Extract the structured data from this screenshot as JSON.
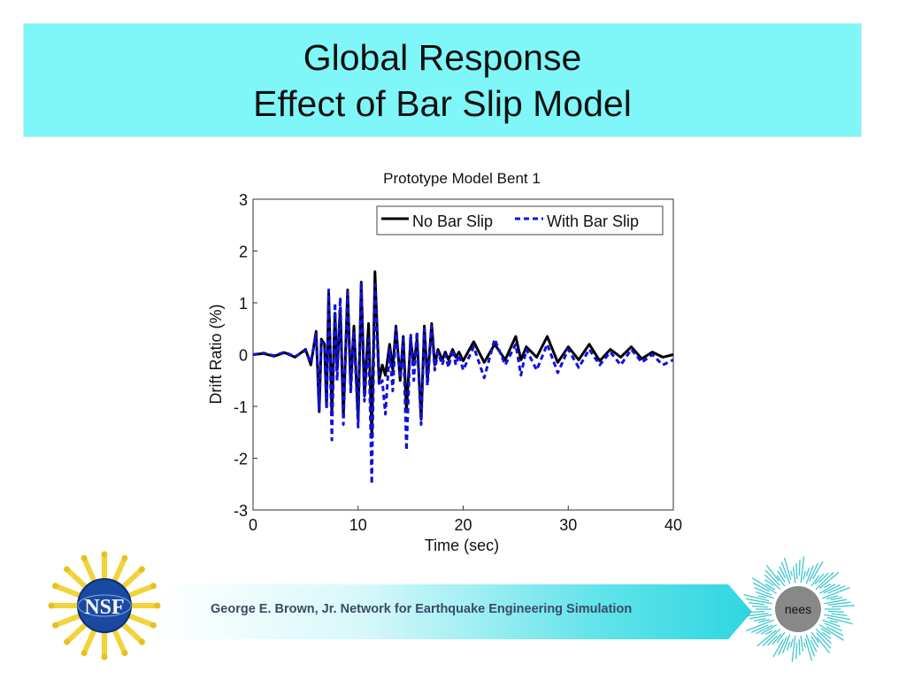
{
  "slide": {
    "title_line1": "Global Response",
    "title_line2": "Effect of Bar Slip Model"
  },
  "footer": {
    "text": "George E. Brown, Jr. Network for Earthquake Engineering Simulation",
    "nsf_logo_text": "NSF",
    "nees_logo_text": "nees"
  },
  "colors": {
    "title_bg": "#7ff7f9",
    "series_no_slip": "#000000",
    "series_with_slip": "#1010e0"
  },
  "chart_data": {
    "type": "line",
    "title": "Prototype Model Bent 1",
    "xlabel": "Time (sec)",
    "ylabel": "Drift Ratio (%)",
    "xlim": [
      0,
      40
    ],
    "ylim": [
      -3,
      3
    ],
    "xticks": [
      0,
      10,
      20,
      30,
      40
    ],
    "yticks": [
      -3,
      -2,
      -1,
      0,
      1,
      2,
      3
    ],
    "legend_position": "top-right",
    "series": [
      {
        "name": "No Bar Slip",
        "style": "solid",
        "x": [
          0,
          1,
          2,
          3,
          4,
          5,
          5.5,
          6,
          6.3,
          6.5,
          6.8,
          7,
          7.2,
          7.5,
          7.8,
          8,
          8.3,
          8.6,
          9,
          9.3,
          9.6,
          10,
          10.3,
          10.6,
          11,
          11.3,
          11.6,
          12,
          12.3,
          12.6,
          13,
          13.3,
          13.6,
          14,
          14.3,
          14.6,
          15,
          15.3,
          15.6,
          16,
          16.3,
          16.6,
          17,
          17.3,
          17.6,
          18,
          18.3,
          18.6,
          19,
          19.3,
          19.6,
          20,
          21,
          22,
          23,
          24,
          25,
          25.5,
          26,
          27,
          28,
          29,
          30,
          31,
          32,
          33,
          34,
          35,
          36,
          37,
          38,
          39,
          40
        ],
        "y": [
          0,
          0.02,
          -0.03,
          0.04,
          -0.05,
          0.1,
          -0.2,
          0.45,
          -1.1,
          0.3,
          0.2,
          -1.0,
          1.2,
          -1.1,
          0.8,
          -0.3,
          0.9,
          -1.2,
          1.25,
          -0.6,
          0.55,
          -1.25,
          1.4,
          -0.8,
          0.6,
          -1.6,
          1.6,
          -0.5,
          -0.2,
          -0.4,
          0.2,
          -0.3,
          0.55,
          -0.5,
          0.35,
          -1.1,
          0.3,
          -0.2,
          0.3,
          -1.25,
          0.55,
          -0.5,
          0.6,
          -0.2,
          0.1,
          -0.1,
          0.05,
          -0.1,
          0.1,
          -0.05,
          0.05,
          -0.12,
          0.25,
          -0.15,
          0.2,
          -0.1,
          0.35,
          -0.1,
          0.15,
          -0.05,
          0.35,
          -0.15,
          0.15,
          -0.1,
          0.2,
          -0.12,
          0.1,
          -0.05,
          0.15,
          -0.08,
          0.05,
          -0.05,
          0.0
        ]
      },
      {
        "name": "With Bar Slip",
        "style": "dashed",
        "x": [
          0,
          1,
          2,
          3,
          4,
          5,
          5.5,
          6,
          6.3,
          6.5,
          6.8,
          7,
          7.2,
          7.5,
          7.8,
          8,
          8.3,
          8.6,
          9,
          9.3,
          9.6,
          10,
          10.3,
          10.6,
          11,
          11.3,
          11.6,
          12,
          12.3,
          12.6,
          13,
          13.3,
          13.6,
          14,
          14.3,
          14.6,
          15,
          15.3,
          15.6,
          16,
          16.3,
          16.6,
          17,
          17.3,
          17.6,
          18,
          18.3,
          18.6,
          19,
          19.3,
          19.6,
          20,
          21,
          22,
          23,
          24,
          25,
          25.5,
          26,
          27,
          28,
          29,
          30,
          31,
          32,
          33,
          34,
          35,
          36,
          37,
          38,
          39,
          40
        ],
        "y": [
          0,
          0.03,
          -0.02,
          0.05,
          -0.04,
          0.08,
          -0.15,
          0.4,
          -1.05,
          0.25,
          0.15,
          -1.05,
          1.25,
          -1.65,
          1.0,
          -0.5,
          1.1,
          -1.35,
          1.2,
          -0.75,
          0.45,
          -1.4,
          1.4,
          -0.9,
          0.3,
          -2.5,
          1.35,
          -0.6,
          -0.5,
          -1.15,
          0.1,
          -0.7,
          0.5,
          -0.45,
          0.3,
          -1.85,
          0.4,
          -0.5,
          0.45,
          -1.35,
          0.5,
          -0.6,
          0.55,
          -0.3,
          0.05,
          -0.2,
          0.0,
          -0.25,
          0.1,
          -0.2,
          0.0,
          -0.3,
          0.15,
          -0.45,
          0.3,
          -0.2,
          0.2,
          -0.4,
          0.1,
          -0.3,
          0.2,
          -0.35,
          0.1,
          -0.25,
          0.1,
          -0.2,
          0.05,
          -0.2,
          0.1,
          -0.15,
          0.0,
          -0.2,
          -0.1
        ]
      }
    ]
  }
}
